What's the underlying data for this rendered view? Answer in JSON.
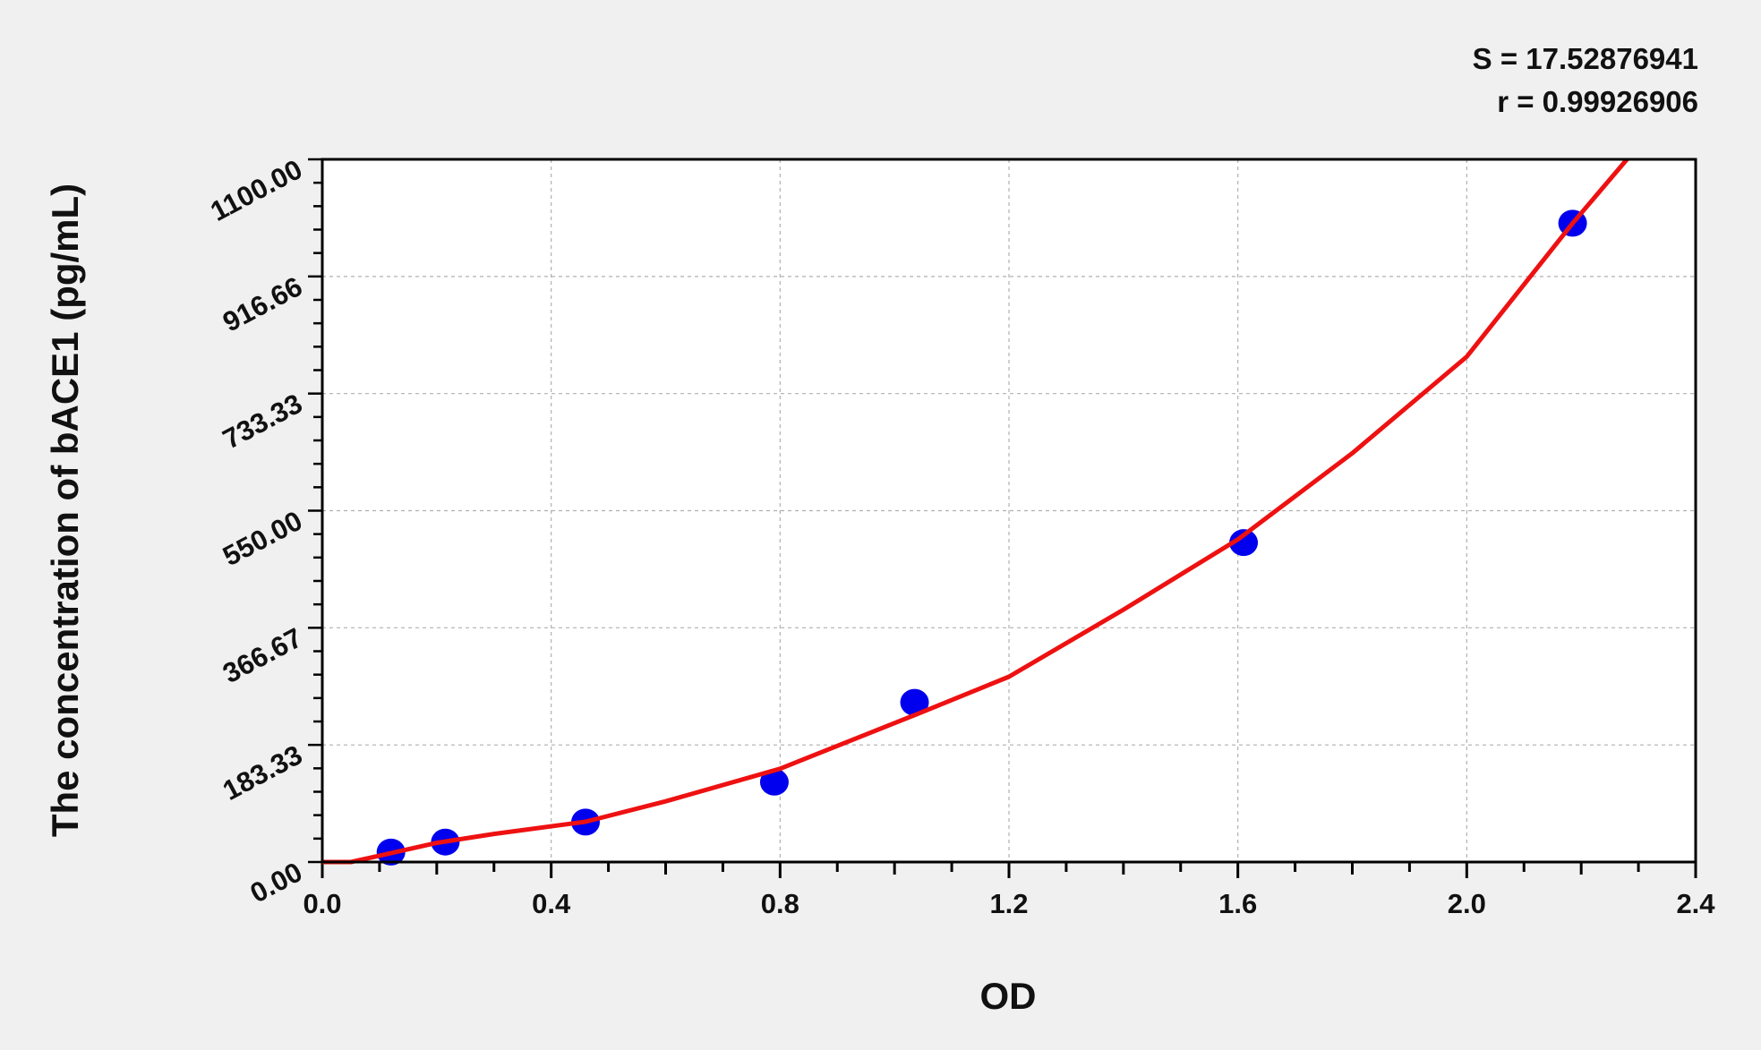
{
  "chart_data": {
    "type": "scatter",
    "title": "",
    "xlabel": "OD",
    "ylabel": "The concentration of bACE1 (pg/mL)",
    "xlim": [
      0,
      2.4
    ],
    "ylim": [
      0,
      1100
    ],
    "x_ticks": [
      "0.0",
      "0.4",
      "0.8",
      "1.2",
      "1.6",
      "2.0",
      "2.4"
    ],
    "x_tick_values": [
      0,
      0.4,
      0.8,
      1.2,
      1.6,
      2.0,
      2.4
    ],
    "y_ticks": [
      "0.00",
      "183.33",
      "366.67",
      "550.00",
      "733.33",
      "916.66",
      "1100.00"
    ],
    "y_tick_values": [
      0,
      183.33,
      366.67,
      550,
      733.33,
      916.66,
      1100
    ],
    "grid": true,
    "annotations": [
      "S = 17.52876941",
      "r = 0.99926906"
    ],
    "points": {
      "color": "#0000ee",
      "x": [
        0.12,
        0.215,
        0.46,
        0.79,
        1.035,
        1.61,
        2.185
      ],
      "y": [
        15.6,
        31.25,
        62.5,
        125,
        250,
        500,
        1000
      ]
    },
    "fit_curve": {
      "color": "#ee1111",
      "x": [
        0,
        0.05,
        0.1,
        0.2,
        0.3,
        0.46,
        0.6,
        0.8,
        1.035,
        1.2,
        1.4,
        1.6,
        1.8,
        2.0,
        2.185,
        2.28
      ],
      "y": [
        0,
        0,
        10,
        30,
        44,
        63,
        95,
        146,
        230,
        290,
        395,
        505,
        640,
        791,
        1000,
        1100
      ]
    }
  }
}
